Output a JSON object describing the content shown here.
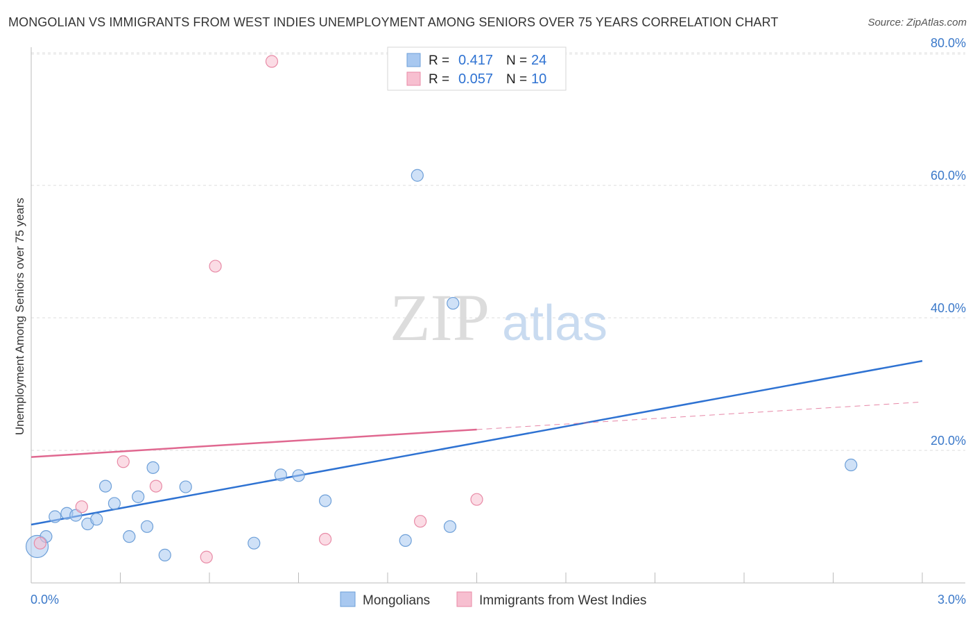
{
  "chart_data": {
    "type": "scatter",
    "title": "MONGOLIAN VS IMMIGRANTS FROM WEST INDIES UNEMPLOYMENT AMONG SENIORS OVER 75 YEARS CORRELATION CHART",
    "source": "Source: ZipAtlas.com",
    "watermark": {
      "zip": "ZIP",
      "atlas": "atlas"
    },
    "xlabel": "",
    "ylabel": "Unemployment Among Seniors over 75 years",
    "xlim": [
      0.0,
      3.0
    ],
    "ylim": [
      0.0,
      82.0
    ],
    "x_tick_labels": [
      {
        "value": 0.0,
        "label": "0.0%"
      },
      {
        "value": 3.0,
        "label": "3.0%"
      }
    ],
    "y_tick_labels": [
      {
        "value": 20.0,
        "label": "20.0%"
      },
      {
        "value": 40.0,
        "label": "40.0%"
      },
      {
        "value": 60.0,
        "label": "60.0%"
      },
      {
        "value": 80.0,
        "label": "80.0%"
      }
    ],
    "x_minor_ticks": [
      0.3,
      0.6,
      0.9,
      1.2,
      1.5,
      1.8,
      2.1,
      2.4,
      2.7,
      3.0
    ],
    "grid": true,
    "legend_position": "top-center",
    "series": [
      {
        "name": "Mongolians",
        "color": "#a8c8f0",
        "stroke": "#6d9fd8",
        "line_color": "#2e72d2",
        "stats": {
          "r_label": "R =",
          "r_value": "0.417",
          "n_label": "N =",
          "n_value": "24"
        },
        "trend": {
          "x0": 0.0,
          "y0": 8.8,
          "x1": 3.0,
          "y1": 33.5,
          "dashed_from": null
        },
        "points": [
          {
            "x": 0.02,
            "y": 5.5,
            "big": true
          },
          {
            "x": 0.05,
            "y": 7.0
          },
          {
            "x": 0.08,
            "y": 10.0
          },
          {
            "x": 0.12,
            "y": 10.5
          },
          {
            "x": 0.15,
            "y": 10.2
          },
          {
            "x": 0.19,
            "y": 8.9
          },
          {
            "x": 0.22,
            "y": 9.6
          },
          {
            "x": 0.25,
            "y": 14.6
          },
          {
            "x": 0.28,
            "y": 12.0
          },
          {
            "x": 0.33,
            "y": 7.0
          },
          {
            "x": 0.36,
            "y": 13.0
          },
          {
            "x": 0.39,
            "y": 8.5
          },
          {
            "x": 0.41,
            "y": 17.4
          },
          {
            "x": 0.45,
            "y": 4.2
          },
          {
            "x": 0.52,
            "y": 14.5
          },
          {
            "x": 0.75,
            "y": 6.0
          },
          {
            "x": 0.84,
            "y": 16.3
          },
          {
            "x": 0.9,
            "y": 16.2
          },
          {
            "x": 0.99,
            "y": 12.4
          },
          {
            "x": 1.26,
            "y": 6.4
          },
          {
            "x": 1.3,
            "y": 61.5
          },
          {
            "x": 1.41,
            "y": 8.5
          },
          {
            "x": 1.42,
            "y": 42.2
          },
          {
            "x": 2.76,
            "y": 17.8
          }
        ]
      },
      {
        "name": "Immigrants from West Indies",
        "color": "#f7bfd0",
        "stroke": "#e88aa6",
        "line_color": "#e06890",
        "stats": {
          "r_label": "R =",
          "r_value": "0.057",
          "n_label": "N =",
          "n_value": "10"
        },
        "trend": {
          "x0": 0.0,
          "y0": 19.0,
          "x1": 3.0,
          "y1": 27.3,
          "dashed_from": 1.5
        },
        "points": [
          {
            "x": 0.03,
            "y": 6.0
          },
          {
            "x": 0.17,
            "y": 11.5
          },
          {
            "x": 0.31,
            "y": 18.3
          },
          {
            "x": 0.42,
            "y": 14.6
          },
          {
            "x": 0.59,
            "y": 3.9
          },
          {
            "x": 0.81,
            "y": 78.7
          },
          {
            "x": 0.62,
            "y": 47.8
          },
          {
            "x": 0.99,
            "y": 6.6
          },
          {
            "x": 1.31,
            "y": 9.3
          },
          {
            "x": 1.5,
            "y": 12.6
          }
        ]
      }
    ]
  }
}
